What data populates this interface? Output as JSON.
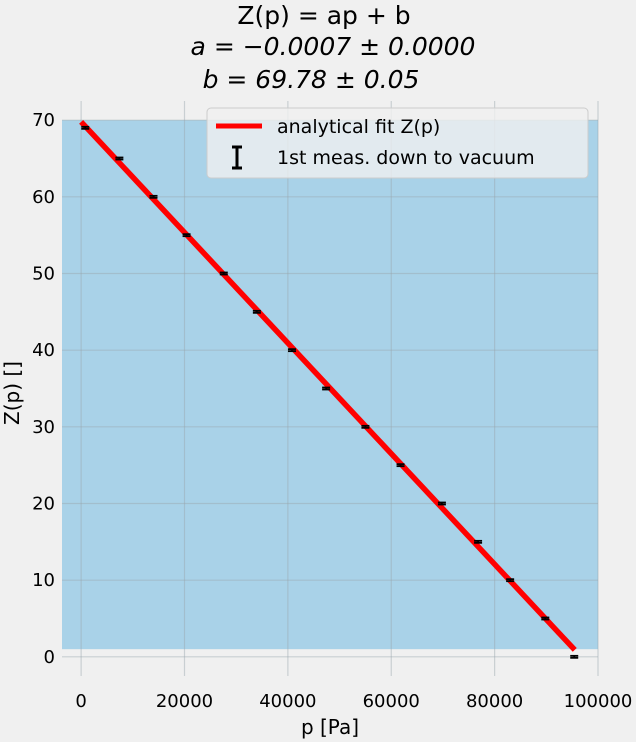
{
  "chart_data": {
    "type": "line",
    "title_lines": [
      "Z(p) = ap + b",
      "a = −0.0007 ± 0.0000",
      "b = 69.78 ± 0.05"
    ],
    "xlabel": "p [Pa]",
    "ylabel": "Z(p) []",
    "xlim": [
      -3700,
      100000
    ],
    "ylim": [
      -2.5,
      72.5
    ],
    "x_ticks": [
      0,
      20000,
      40000,
      60000,
      80000,
      100000
    ],
    "x_tick_labels": [
      "0",
      "20000",
      "40000",
      "60000",
      "80000",
      "100000"
    ],
    "y_ticks": [
      0,
      10,
      20,
      30,
      40,
      50,
      60,
      70
    ],
    "y_tick_labels": [
      "0",
      "10",
      "20",
      "30",
      "40",
      "50",
      "60",
      "70"
    ],
    "grid": true,
    "legend_position": "top-right",
    "shaded_band": {
      "y_range": [
        1,
        70
      ],
      "color": "#a9d2e8"
    },
    "series": [
      {
        "name": "analytical fit Z(p)",
        "kind": "line",
        "color": "#ff0000",
        "x": [
          0,
          95500
        ],
        "y": [
          69.78,
          0.9
        ]
      },
      {
        "name": "1st meas. down to vacuum",
        "kind": "errorbar",
        "color": "#000000",
        "x": [
          800,
          7400,
          14000,
          20400,
          27600,
          34000,
          40800,
          47400,
          55000,
          61800,
          69800,
          76800,
          83000,
          89800,
          95400
        ],
        "y": [
          69,
          65,
          60,
          55,
          50,
          45,
          40,
          35,
          30,
          25,
          20,
          15,
          10,
          5,
          0
        ]
      }
    ]
  }
}
